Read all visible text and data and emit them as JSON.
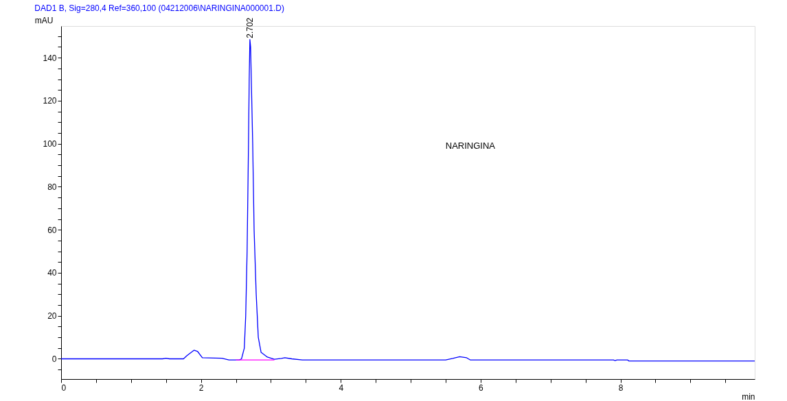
{
  "chart_data": {
    "type": "line",
    "title": "DAD1 B, Sig=280,4 Ref=360,100 (04212006\\NARINGINA000001.D)",
    "xlabel": "min",
    "ylabel": "mAU",
    "xlim": [
      0,
      9.92
    ],
    "ylim": [
      -9.4,
      154.7
    ],
    "xticks": [
      0,
      {
        "value": 0.5,
        "label": null
      },
      {
        "value": 1,
        "label": null
      },
      {
        "value": 1.5,
        "label": null
      },
      2,
      {
        "value": 2.5,
        "label": null
      },
      {
        "value": 3,
        "label": null
      },
      {
        "value": 3.5,
        "label": null
      },
      4,
      {
        "value": 4.5,
        "label": null
      },
      {
        "value": 5,
        "label": null
      },
      {
        "value": 5.5,
        "label": null
      },
      6,
      {
        "value": 6.5,
        "label": null
      },
      {
        "value": 7,
        "label": null
      },
      {
        "value": 7.5,
        "label": null
      },
      8,
      {
        "value": 8.5,
        "label": null
      },
      {
        "value": 9,
        "label": null
      },
      {
        "value": 9.5,
        "label": null
      }
    ],
    "yticks": [
      {
        "value": -5,
        "label": null
      },
      0,
      {
        "value": 5,
        "label": null
      },
      {
        "value": 10,
        "label": null
      },
      {
        "value": 15,
        "label": null
      },
      20,
      {
        "value": 25,
        "label": null
      },
      {
        "value": 30,
        "label": null
      },
      {
        "value": 35,
        "label": null
      },
      40,
      {
        "value": 45,
        "label": null
      },
      {
        "value": 50,
        "label": null
      },
      {
        "value": 55,
        "label": null
      },
      60,
      {
        "value": 65,
        "label": null
      },
      {
        "value": 70,
        "label": null
      },
      {
        "value": 75,
        "label": null
      },
      80,
      {
        "value": 85,
        "label": null
      },
      {
        "value": 90,
        "label": null
      },
      {
        "value": 95,
        "label": null
      },
      100,
      {
        "value": 105,
        "label": null
      },
      {
        "value": 110,
        "label": null
      },
      {
        "value": 115,
        "label": null
      },
      120,
      {
        "value": 125,
        "label": null
      },
      {
        "value": 130,
        "label": null
      },
      {
        "value": 135,
        "label": null
      },
      140,
      {
        "value": 145,
        "label": null
      },
      {
        "value": 150,
        "label": null
      }
    ],
    "grid": false,
    "annotations": [
      {
        "text": "2.702",
        "x": 2.702,
        "y": 148.4
      },
      "NARINGINA"
    ],
    "series": [
      {
        "color": "#0000ff",
        "x": [
          0,
          1.45,
          1.5,
          1.55,
          1.75,
          1.8,
          1.9,
          1.95,
          2.02,
          2.3,
          2.4,
          2.55,
          2.58,
          2.62,
          2.64,
          2.66,
          2.68,
          2.69,
          2.7,
          2.71,
          2.72,
          2.74,
          2.76,
          2.79,
          2.82,
          2.86,
          2.95,
          3.05,
          3.15,
          3.2,
          3.3,
          3.45,
          5.5,
          5.6,
          5.7,
          5.8,
          5.85,
          7.9,
          7.92,
          7.95,
          8.1,
          8.12,
          9.92
        ],
        "values": [
          0,
          0,
          0.3,
          0,
          0,
          1.5,
          4,
          3.5,
          0.5,
          0.3,
          -0.5,
          -0.5,
          0,
          5,
          20,
          50,
          100,
          130,
          148.4,
          145,
          130,
          100,
          60,
          30,
          10,
          3,
          0.8,
          -0.2,
          0.2,
          0.5,
          0,
          -0.5,
          -0.5,
          0.2,
          1,
          0.5,
          -0.5,
          -0.5,
          -0.8,
          -0.5,
          -0.5,
          -1,
          -1
        ]
      },
      {
        "color": "#ff00ff",
        "x": [
          2.5,
          3.05
        ],
        "values": [
          -0.5,
          -0.5
        ]
      }
    ]
  }
}
